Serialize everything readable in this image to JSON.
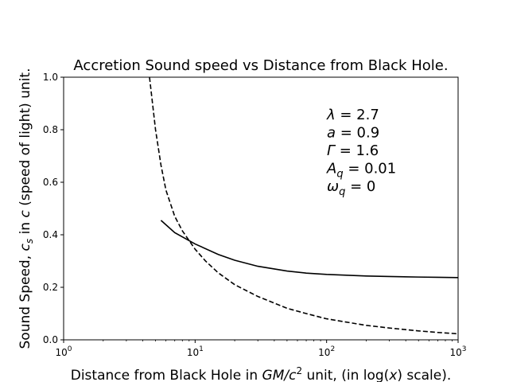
{
  "chart_data": {
    "type": "line",
    "title": "Accretion Sound speed vs Distance from Black Hole.",
    "xlabel": {
      "prefix": "Distance from Black Hole in ",
      "unit_base": "GM/c",
      "unit_exp": "2",
      "middle": " unit, (in log(",
      "var": "x",
      "suffix": ") scale)."
    },
    "ylabel": {
      "prefix": "Sound Speed, ",
      "sym": "c",
      "sub": "s",
      "middle": " in ",
      "sym2": "c",
      "suffix": " (speed of light) unit."
    },
    "xscale": "log",
    "xlim": [
      1,
      1000
    ],
    "ylim": [
      0,
      1.0
    ],
    "grid": false,
    "xticks": [
      {
        "value": 1,
        "base": "10",
        "exp": "0"
      },
      {
        "value": 10,
        "base": "10",
        "exp": "1"
      },
      {
        "value": 100,
        "base": "10",
        "exp": "2"
      },
      {
        "value": 1000,
        "base": "10",
        "exp": "3"
      }
    ],
    "yticks": [
      {
        "value": 0.0,
        "label": "0.0"
      },
      {
        "value": 0.2,
        "label": "0.2"
      },
      {
        "value": 0.4,
        "label": "0.4"
      },
      {
        "value": 0.6,
        "label": "0.6"
      },
      {
        "value": 0.8,
        "label": "0.8"
      },
      {
        "value": 1.0,
        "label": "1.0"
      }
    ],
    "series": [
      {
        "style": "solid",
        "color": "#000000",
        "x": [
          5.5,
          7,
          10,
          15,
          20,
          30,
          50,
          70,
          100,
          200,
          300,
          500,
          700,
          1000
        ],
        "y": [
          0.455,
          0.408,
          0.365,
          0.325,
          0.303,
          0.28,
          0.262,
          0.254,
          0.249,
          0.243,
          0.241,
          0.239,
          0.238,
          0.237
        ]
      },
      {
        "style": "dashed",
        "color": "#000000",
        "x": [
          4.5,
          5,
          5.5,
          6,
          7,
          8,
          10,
          12,
          15,
          20,
          30,
          50,
          70,
          100,
          200,
          300,
          500,
          700,
          1000
        ],
        "y": [
          1.0,
          0.8,
          0.665,
          0.57,
          0.47,
          0.415,
          0.345,
          0.3,
          0.255,
          0.21,
          0.165,
          0.12,
          0.1,
          0.08,
          0.055,
          0.045,
          0.034,
          0.028,
          0.023
        ]
      }
    ],
    "annotations": [
      {
        "sym": "λ",
        "sub": "",
        "value": " = 2.7"
      },
      {
        "sym": "a",
        "sub": "",
        "value": " = 0.9"
      },
      {
        "sym": "Γ",
        "sub": "",
        "value": " = 1.6"
      },
      {
        "sym": "A",
        "sub": "q",
        "value": " = 0.01"
      },
      {
        "sym": "ω",
        "sub": "q",
        "value": " = 0"
      }
    ]
  }
}
